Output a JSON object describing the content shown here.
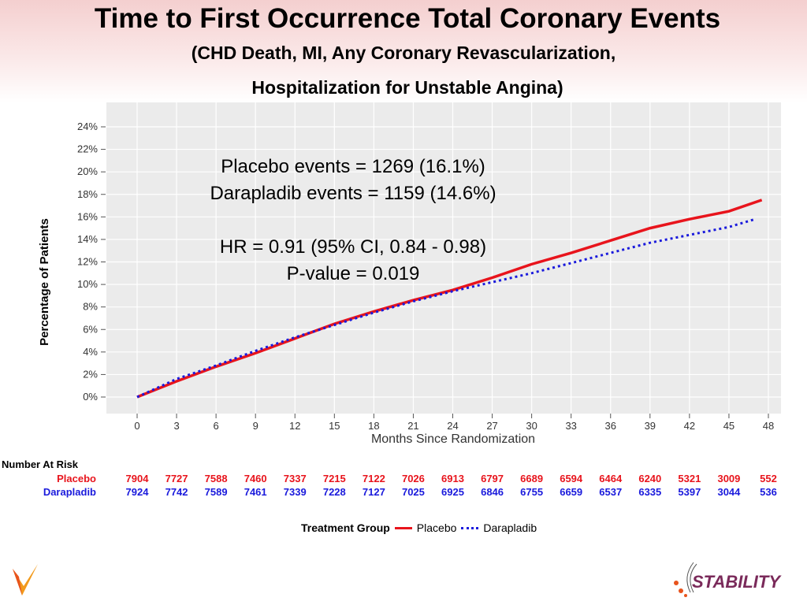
{
  "title": "Time to First Occurrence Total Coronary Events",
  "subtitle1": "(CHD Death, MI, Any Coronary Revascularization,",
  "subtitle2": "Hospitalization for Unstable Angina)",
  "annotations": [
    "Placebo events = 1269 (16.1%)",
    "Darapladib events = 1159 (14.6%)",
    "HR = 0.91 (95% CI, 0.84 - 0.98)",
    "P-value = 0.019"
  ],
  "colors": {
    "placebo": "#e8141c",
    "darapladib": "#1a1adc"
  },
  "risk": {
    "title": "Number At Risk",
    "placebo_label": "Placebo",
    "darapladib_label": "Darapladib",
    "placebo": [
      "7904",
      "7727",
      "7588",
      "7460",
      "7337",
      "7215",
      "7122",
      "7026",
      "6913",
      "6797",
      "6689",
      "6594",
      "6464",
      "6240",
      "5321",
      "3009",
      "552"
    ],
    "darapladib": [
      "7924",
      "7742",
      "7589",
      "7461",
      "7339",
      "7228",
      "7127",
      "7025",
      "6925",
      "6846",
      "6755",
      "6659",
      "6537",
      "6335",
      "5397",
      "3044",
      "536"
    ]
  },
  "legend": {
    "title": "Treatment Group",
    "items": [
      "Placebo",
      "Darapladib"
    ]
  },
  "logo": "STABILITY",
  "chart_data": {
    "type": "line",
    "xlabel": "Months Since Randomization",
    "ylabel": "Percentage of Patients",
    "xlim": [
      0,
      48
    ],
    "ylim": [
      0,
      24
    ],
    "xticks": [
      "0",
      "3",
      "6",
      "9",
      "12",
      "15",
      "18",
      "21",
      "24",
      "27",
      "30",
      "33",
      "36",
      "39",
      "42",
      "45",
      "48"
    ],
    "yticks": [
      "0%",
      "2%",
      "4%",
      "6%",
      "8%",
      "10%",
      "12%",
      "14%",
      "16%",
      "18%",
      "20%",
      "22%",
      "24%"
    ],
    "series": [
      {
        "name": "Placebo",
        "style": "solid",
        "x": [
          0,
          3,
          6,
          9,
          12,
          15,
          18,
          21,
          24,
          27,
          30,
          33,
          36,
          39,
          42,
          45,
          47.5
        ],
        "y": [
          0,
          1.4,
          2.7,
          3.9,
          5.2,
          6.5,
          7.6,
          8.6,
          9.5,
          10.6,
          11.8,
          12.8,
          13.9,
          15.0,
          15.8,
          16.5,
          17.5
        ]
      },
      {
        "name": "Darapladib",
        "style": "dotted",
        "x": [
          0,
          3,
          6,
          9,
          12,
          15,
          18,
          21,
          24,
          27,
          30,
          33,
          36,
          39,
          42,
          45,
          47
        ],
        "y": [
          0,
          1.6,
          2.8,
          4.1,
          5.3,
          6.4,
          7.5,
          8.5,
          9.4,
          10.2,
          11.0,
          11.9,
          12.8,
          13.7,
          14.4,
          15.1,
          15.8
        ]
      }
    ]
  }
}
